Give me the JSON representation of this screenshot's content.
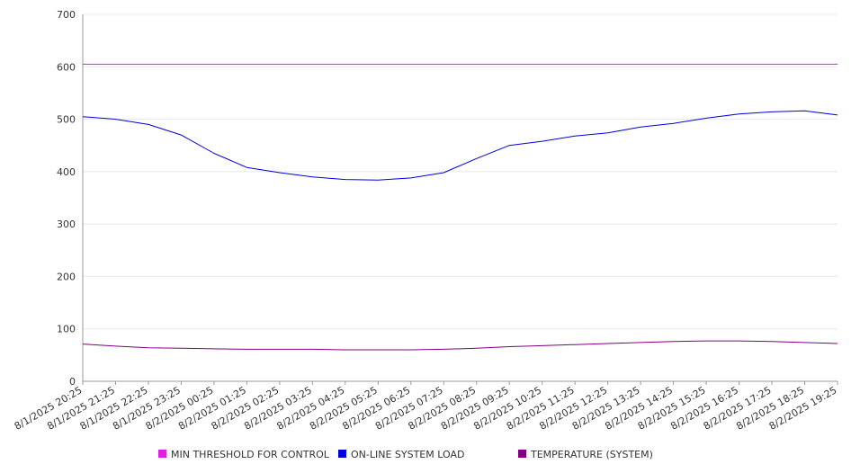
{
  "chart_data": {
    "type": "line",
    "title": "",
    "xlabel": "",
    "ylabel": "",
    "ylim": [
      0,
      700
    ],
    "y_ticks": [
      0,
      100,
      200,
      300,
      400,
      500,
      600,
      700
    ],
    "x_tick_labels": [
      "8/1/2025 20:25",
      "8/1/2025 21:25",
      "8/1/2025 22:25",
      "8/1/2025 23:25",
      "8/2/2025 00:25",
      "8/2/2025 01:25",
      "8/2/2025 02:25",
      "8/2/2025 03:25",
      "8/2/2025 04:25",
      "8/2/2025 05:25",
      "8/2/2025 06:25",
      "8/2/2025 07:25",
      "8/2/2025 08:25",
      "8/2/2025 09:25",
      "8/2/2025 10:25",
      "8/2/2025 11:25",
      "8/2/2025 12:25",
      "8/2/2025 13:25",
      "8/2/2025 14:25",
      "8/2/2025 15:25",
      "8/2/2025 16:25",
      "8/2/2025 17:25",
      "8/2/2025 18:25",
      "8/2/2025 19:25"
    ],
    "x": [
      "8/1/2025 20:25",
      "8/1/2025 21:25",
      "8/1/2025 22:25",
      "8/1/2025 23:25",
      "8/2/2025 00:25",
      "8/2/2025 01:25",
      "8/2/2025 02:25",
      "8/2/2025 03:25",
      "8/2/2025 04:25",
      "8/2/2025 05:25",
      "8/2/2025 06:25",
      "8/2/2025 07:25",
      "8/2/2025 08:25",
      "8/2/2025 09:25",
      "8/2/2025 10:25",
      "8/2/2025 11:25",
      "8/2/2025 12:25",
      "8/2/2025 13:25",
      "8/2/2025 14:25",
      "8/2/2025 15:25",
      "8/2/2025 16:25",
      "8/2/2025 17:25",
      "8/2/2025 18:25",
      "8/2/2025 19:25"
    ],
    "series": [
      {
        "name": "MIN THRESHOLD FOR CONTROL",
        "color": "#e020e0",
        "values": [
          605,
          605,
          605,
          605,
          605,
          605,
          605,
          605,
          605,
          605,
          605,
          605,
          605,
          605,
          605,
          605,
          605,
          605,
          605,
          605,
          605,
          605,
          605,
          605
        ]
      },
      {
        "name": "ON-LINE SYSTEM LOAD",
        "color": "#0000e0",
        "values": [
          505,
          500,
          490,
          470,
          435,
          408,
          398,
          390,
          385,
          384,
          388,
          398,
          425,
          450,
          458,
          468,
          474,
          485,
          492,
          502,
          510,
          514,
          516,
          508
        ]
      },
      {
        "name": "TEMPERATURE (SYSTEM)",
        "color": "#800080",
        "values": [
          71,
          67,
          64,
          63,
          62,
          61,
          61,
          61,
          60,
          60,
          60,
          61,
          63,
          66,
          68,
          70,
          72,
          74,
          76,
          77,
          77,
          76,
          74,
          72
        ]
      }
    ],
    "legend": {
      "position": "bottom",
      "items": [
        "MIN THRESHOLD FOR CONTROL",
        "ON-LINE SYSTEM LOAD",
        "TEMPERATURE (SYSTEM)"
      ]
    },
    "grid": true,
    "colors": {
      "axis": "#999999",
      "grid": "#e8e8e8",
      "text": "#333333"
    }
  }
}
